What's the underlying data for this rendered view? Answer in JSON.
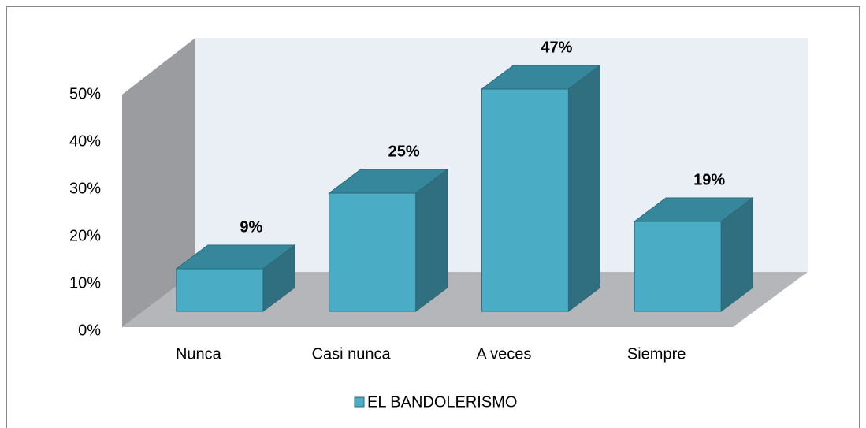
{
  "chart_data": {
    "type": "bar3d",
    "categories": [
      "Nunca",
      "Casi nunca",
      "A veces",
      "Siempre"
    ],
    "series": [
      {
        "name": "EL BANDOLERISMO",
        "color": "#4bacc6",
        "values": [
          9,
          25,
          47,
          19
        ],
        "value_labels": [
          "9%",
          "25%",
          "47%",
          "19%"
        ]
      }
    ],
    "ylim": [
      0,
      50
    ],
    "yticks": [
      {
        "value": 0,
        "label": "0%"
      },
      {
        "value": 10,
        "label": "10%"
      },
      {
        "value": 20,
        "label": "20%"
      },
      {
        "value": 30,
        "label": "30%"
      },
      {
        "value": 40,
        "label": "40%"
      },
      {
        "value": 50,
        "label": "50%"
      }
    ],
    "legend": "bottom"
  }
}
